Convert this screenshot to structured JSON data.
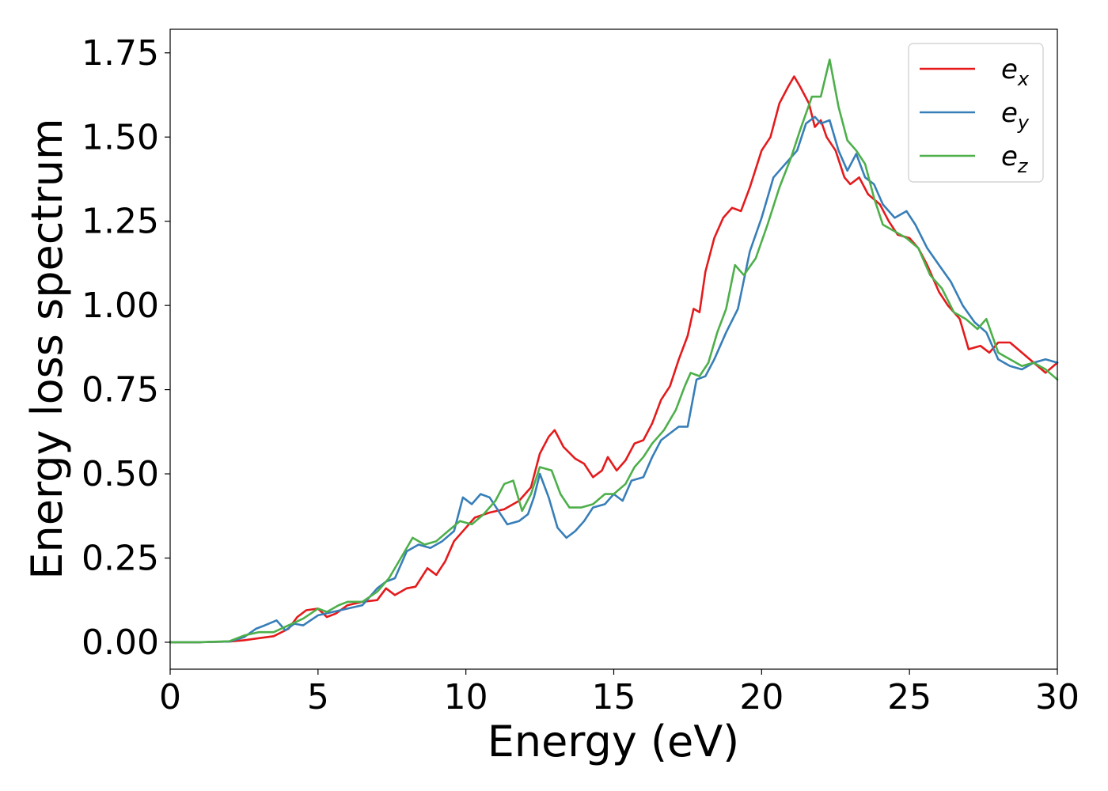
{
  "chart_data": {
    "type": "line",
    "title": "",
    "xlabel": "Energy (eV)",
    "ylabel": "Energy loss spectrum",
    "xlim": [
      0,
      30
    ],
    "ylim": [
      -0.08,
      1.82
    ],
    "xticks": [
      0,
      5,
      10,
      15,
      20,
      25,
      30
    ],
    "xtick_labels": [
      "0",
      "5",
      "10",
      "15",
      "20",
      "25",
      "30"
    ],
    "yticks": [
      0.0,
      0.25,
      0.5,
      0.75,
      1.0,
      1.25,
      1.5,
      1.75
    ],
    "ytick_labels": [
      "0.00",
      "0.25",
      "0.50",
      "0.75",
      "1.00",
      "1.25",
      "1.50",
      "1.75"
    ],
    "grid": false,
    "legend_position": "top-right",
    "series": [
      {
        "name": "e",
        "subscript": "x",
        "color": "#e41a1c",
        "points": [
          [
            0,
            0
          ],
          [
            1,
            0
          ],
          [
            2,
            0.002
          ],
          [
            2.5,
            0.006
          ],
          [
            3,
            0.012
          ],
          [
            3.5,
            0.018
          ],
          [
            4,
            0.04
          ],
          [
            4.3,
            0.075
          ],
          [
            4.6,
            0.095
          ],
          [
            5,
            0.1
          ],
          [
            5.3,
            0.075
          ],
          [
            5.6,
            0.085
          ],
          [
            6,
            0.11
          ],
          [
            6.5,
            0.12
          ],
          [
            7,
            0.125
          ],
          [
            7.3,
            0.16
          ],
          [
            7.6,
            0.14
          ],
          [
            8,
            0.16
          ],
          [
            8.3,
            0.165
          ],
          [
            8.7,
            0.22
          ],
          [
            9,
            0.2
          ],
          [
            9.3,
            0.24
          ],
          [
            9.6,
            0.3
          ],
          [
            10,
            0.34
          ],
          [
            10.3,
            0.37
          ],
          [
            10.8,
            0.385
          ],
          [
            11.3,
            0.395
          ],
          [
            11.8,
            0.42
          ],
          [
            12.2,
            0.46
          ],
          [
            12.5,
            0.56
          ],
          [
            12.8,
            0.61
          ],
          [
            13,
            0.63
          ],
          [
            13.3,
            0.58
          ],
          [
            13.7,
            0.545
          ],
          [
            14,
            0.53
          ],
          [
            14.3,
            0.49
          ],
          [
            14.6,
            0.51
          ],
          [
            14.8,
            0.55
          ],
          [
            15.1,
            0.51
          ],
          [
            15.4,
            0.54
          ],
          [
            15.7,
            0.59
          ],
          [
            16,
            0.6
          ],
          [
            16.3,
            0.65
          ],
          [
            16.6,
            0.72
          ],
          [
            16.9,
            0.76
          ],
          [
            17.2,
            0.84
          ],
          [
            17.5,
            0.91
          ],
          [
            17.7,
            0.99
          ],
          [
            17.9,
            0.98
          ],
          [
            18.1,
            1.1
          ],
          [
            18.4,
            1.2
          ],
          [
            18.7,
            1.26
          ],
          [
            19,
            1.29
          ],
          [
            19.3,
            1.28
          ],
          [
            19.6,
            1.35
          ],
          [
            20,
            1.46
          ],
          [
            20.3,
            1.5
          ],
          [
            20.6,
            1.6
          ],
          [
            20.9,
            1.65
          ],
          [
            21.1,
            1.68
          ],
          [
            21.3,
            1.65
          ],
          [
            21.6,
            1.6
          ],
          [
            21.8,
            1.53
          ],
          [
            22,
            1.55
          ],
          [
            22.2,
            1.5
          ],
          [
            22.5,
            1.46
          ],
          [
            22.8,
            1.38
          ],
          [
            23,
            1.36
          ],
          [
            23.3,
            1.38
          ],
          [
            23.6,
            1.33
          ],
          [
            24,
            1.3
          ],
          [
            24.3,
            1.25
          ],
          [
            24.6,
            1.21
          ],
          [
            25,
            1.2
          ],
          [
            25.3,
            1.17
          ],
          [
            25.6,
            1.12
          ],
          [
            26,
            1.04
          ],
          [
            26.3,
            1.0
          ],
          [
            26.7,
            0.96
          ],
          [
            27,
            0.87
          ],
          [
            27.4,
            0.88
          ],
          [
            27.7,
            0.86
          ],
          [
            28,
            0.89
          ],
          [
            28.4,
            0.89
          ],
          [
            28.8,
            0.86
          ],
          [
            29.2,
            0.83
          ],
          [
            29.6,
            0.8
          ],
          [
            30,
            0.83
          ]
        ]
      },
      {
        "name": "e",
        "subscript": "y",
        "color": "#377eb8",
        "points": [
          [
            0,
            0
          ],
          [
            1,
            0
          ],
          [
            2,
            0.002
          ],
          [
            2.5,
            0.015
          ],
          [
            2.9,
            0.04
          ],
          [
            3.2,
            0.05
          ],
          [
            3.6,
            0.065
          ],
          [
            3.9,
            0.035
          ],
          [
            4.2,
            0.055
          ],
          [
            4.5,
            0.05
          ],
          [
            5,
            0.08
          ],
          [
            5.5,
            0.09
          ],
          [
            6,
            0.1
          ],
          [
            6.5,
            0.11
          ],
          [
            7,
            0.16
          ],
          [
            7.3,
            0.18
          ],
          [
            7.6,
            0.19
          ],
          [
            8,
            0.27
          ],
          [
            8.4,
            0.29
          ],
          [
            8.8,
            0.28
          ],
          [
            9.2,
            0.3
          ],
          [
            9.6,
            0.33
          ],
          [
            9.9,
            0.43
          ],
          [
            10.2,
            0.41
          ],
          [
            10.5,
            0.44
          ],
          [
            10.8,
            0.43
          ],
          [
            11.1,
            0.39
          ],
          [
            11.4,
            0.35
          ],
          [
            11.8,
            0.36
          ],
          [
            12.1,
            0.38
          ],
          [
            12.3,
            0.43
          ],
          [
            12.5,
            0.5
          ],
          [
            12.8,
            0.43
          ],
          [
            13.1,
            0.34
          ],
          [
            13.4,
            0.31
          ],
          [
            13.7,
            0.33
          ],
          [
            14,
            0.36
          ],
          [
            14.3,
            0.4
          ],
          [
            14.7,
            0.41
          ],
          [
            15,
            0.44
          ],
          [
            15.3,
            0.42
          ],
          [
            15.6,
            0.48
          ],
          [
            16,
            0.49
          ],
          [
            16.3,
            0.55
          ],
          [
            16.6,
            0.6
          ],
          [
            16.9,
            0.62
          ],
          [
            17.2,
            0.64
          ],
          [
            17.5,
            0.64
          ],
          [
            17.8,
            0.78
          ],
          [
            18.1,
            0.79
          ],
          [
            18.4,
            0.84
          ],
          [
            18.8,
            0.92
          ],
          [
            19.2,
            0.99
          ],
          [
            19.6,
            1.16
          ],
          [
            20,
            1.26
          ],
          [
            20.4,
            1.38
          ],
          [
            20.8,
            1.42
          ],
          [
            21.2,
            1.46
          ],
          [
            21.5,
            1.54
          ],
          [
            21.8,
            1.56
          ],
          [
            22,
            1.54
          ],
          [
            22.3,
            1.55
          ],
          [
            22.6,
            1.46
          ],
          [
            22.9,
            1.4
          ],
          [
            23.2,
            1.45
          ],
          [
            23.5,
            1.38
          ],
          [
            23.8,
            1.36
          ],
          [
            24.1,
            1.3
          ],
          [
            24.5,
            1.26
          ],
          [
            24.9,
            1.28
          ],
          [
            25.2,
            1.24
          ],
          [
            25.6,
            1.17
          ],
          [
            26,
            1.12
          ],
          [
            26.4,
            1.07
          ],
          [
            26.8,
            1.0
          ],
          [
            27.2,
            0.95
          ],
          [
            27.6,
            0.92
          ],
          [
            28,
            0.84
          ],
          [
            28.4,
            0.82
          ],
          [
            28.8,
            0.81
          ],
          [
            29.2,
            0.83
          ],
          [
            29.6,
            0.84
          ],
          [
            30,
            0.83
          ]
        ]
      },
      {
        "name": "e",
        "subscript": "z",
        "color": "#4daf4a",
        "points": [
          [
            0,
            0
          ],
          [
            1,
            0
          ],
          [
            2,
            0.003
          ],
          [
            2.5,
            0.02
          ],
          [
            3,
            0.03
          ],
          [
            3.5,
            0.03
          ],
          [
            4,
            0.05
          ],
          [
            4.5,
            0.07
          ],
          [
            5,
            0.1
          ],
          [
            5.3,
            0.09
          ],
          [
            5.7,
            0.11
          ],
          [
            6,
            0.12
          ],
          [
            6.5,
            0.12
          ],
          [
            7,
            0.15
          ],
          [
            7.4,
            0.19
          ],
          [
            7.8,
            0.25
          ],
          [
            8.2,
            0.31
          ],
          [
            8.6,
            0.29
          ],
          [
            9,
            0.3
          ],
          [
            9.4,
            0.33
          ],
          [
            9.8,
            0.36
          ],
          [
            10.2,
            0.35
          ],
          [
            10.6,
            0.38
          ],
          [
            11,
            0.42
          ],
          [
            11.3,
            0.47
          ],
          [
            11.6,
            0.48
          ],
          [
            11.9,
            0.39
          ],
          [
            12.2,
            0.44
          ],
          [
            12.5,
            0.52
          ],
          [
            12.9,
            0.51
          ],
          [
            13.2,
            0.44
          ],
          [
            13.5,
            0.4
          ],
          [
            13.9,
            0.4
          ],
          [
            14.3,
            0.41
          ],
          [
            14.7,
            0.44
          ],
          [
            15,
            0.44
          ],
          [
            15.4,
            0.47
          ],
          [
            15.7,
            0.52
          ],
          [
            16,
            0.55
          ],
          [
            16.3,
            0.59
          ],
          [
            16.7,
            0.63
          ],
          [
            17.1,
            0.69
          ],
          [
            17.4,
            0.76
          ],
          [
            17.6,
            0.8
          ],
          [
            17.9,
            0.79
          ],
          [
            18.2,
            0.83
          ],
          [
            18.5,
            0.92
          ],
          [
            18.8,
            0.99
          ],
          [
            19.1,
            1.12
          ],
          [
            19.4,
            1.09
          ],
          [
            19.8,
            1.14
          ],
          [
            20.2,
            1.24
          ],
          [
            20.6,
            1.35
          ],
          [
            21,
            1.44
          ],
          [
            21.3,
            1.52
          ],
          [
            21.7,
            1.62
          ],
          [
            22,
            1.62
          ],
          [
            22.3,
            1.73
          ],
          [
            22.6,
            1.59
          ],
          [
            22.9,
            1.49
          ],
          [
            23.2,
            1.46
          ],
          [
            23.5,
            1.42
          ],
          [
            23.8,
            1.32
          ],
          [
            24.1,
            1.24
          ],
          [
            24.5,
            1.22
          ],
          [
            24.9,
            1.2
          ],
          [
            25.3,
            1.17
          ],
          [
            25.7,
            1.09
          ],
          [
            26.1,
            1.05
          ],
          [
            26.5,
            0.98
          ],
          [
            26.9,
            0.96
          ],
          [
            27.3,
            0.93
          ],
          [
            27.6,
            0.96
          ],
          [
            28,
            0.86
          ],
          [
            28.4,
            0.84
          ],
          [
            28.8,
            0.82
          ],
          [
            29.2,
            0.83
          ],
          [
            29.6,
            0.81
          ],
          [
            30,
            0.78
          ]
        ]
      }
    ]
  }
}
